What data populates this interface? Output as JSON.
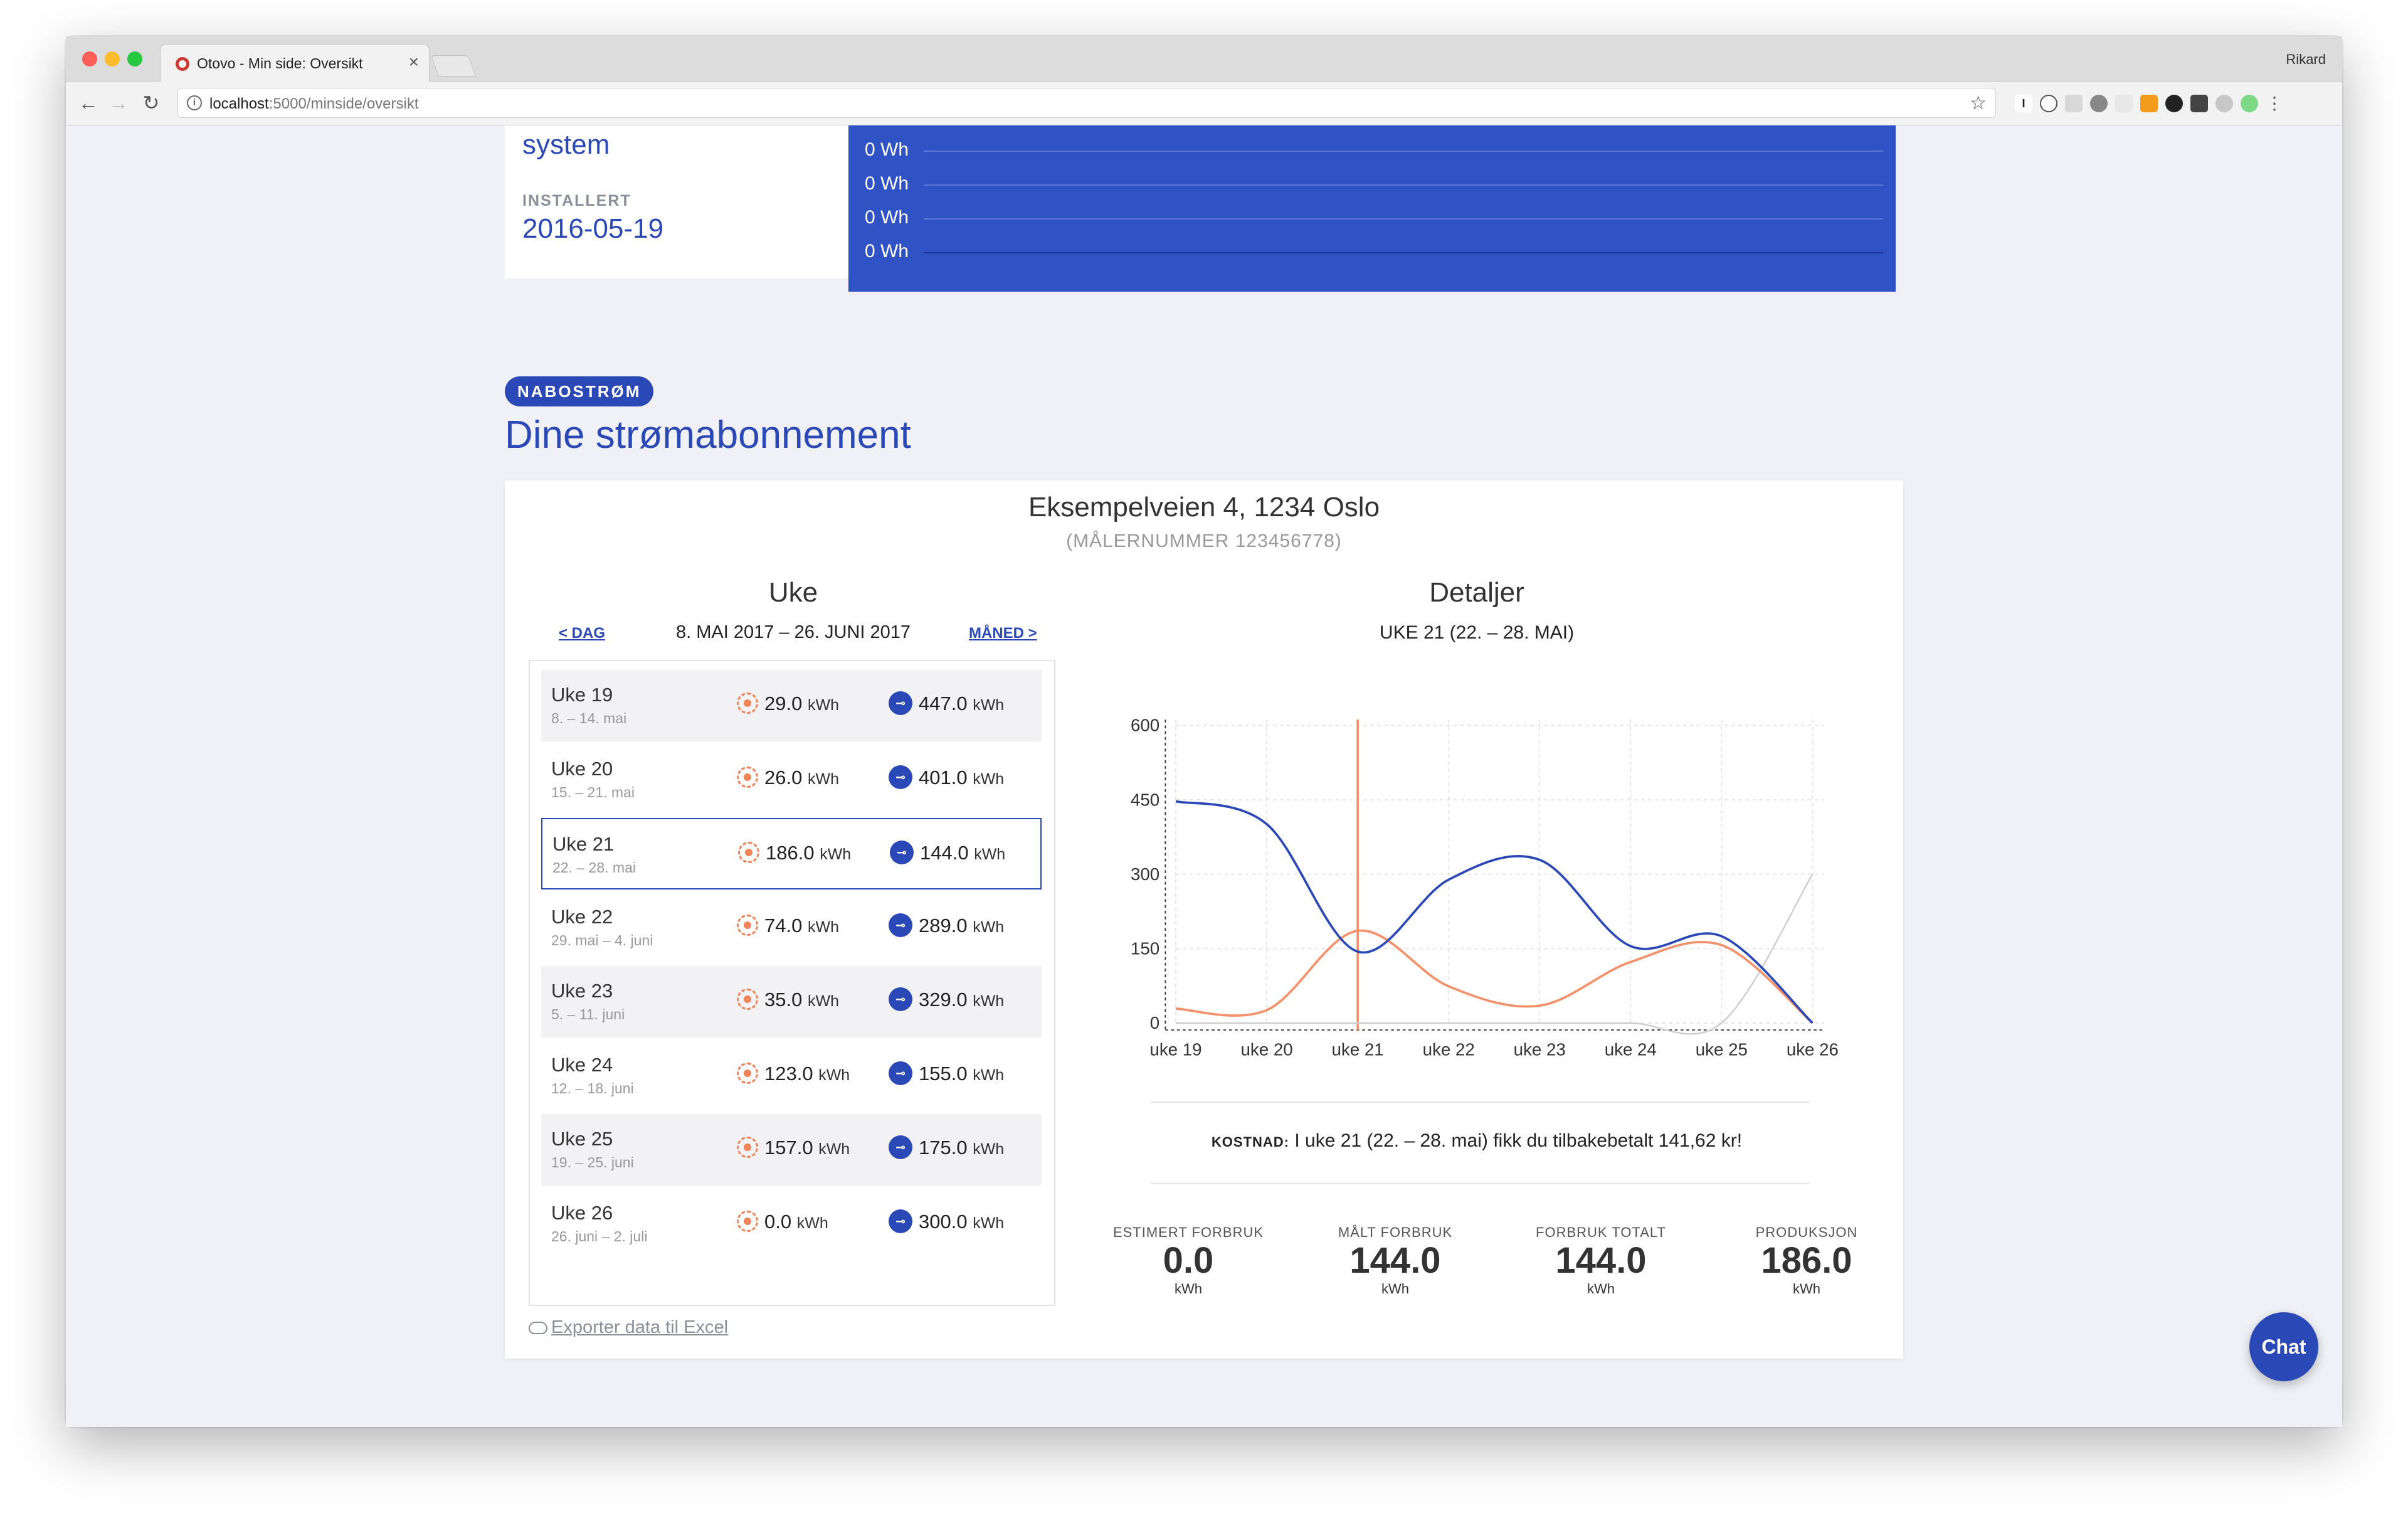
{
  "browser": {
    "tab_title": "Otovo - Min side: Oversikt",
    "tab_close": "×",
    "user": "Rikard",
    "url_host": "localhost",
    "url_path": ":5000/minside/oversikt",
    "back": "←",
    "forward": "→",
    "reload": "↻",
    "bookmark": "☆",
    "info": "i"
  },
  "system_card": {
    "system_word": "system",
    "installed_label": "INSTALLERT",
    "installed_date": "2016-05-19"
  },
  "production_chart": {
    "labels": [
      "0 Wh",
      "0 Wh",
      "0 Wh",
      "0 Wh"
    ]
  },
  "section": {
    "badge": "NABOSTRØM",
    "title": "Dine strømabonnement"
  },
  "subscription": {
    "address": "Eksempelveien 4, 1234 Oslo",
    "meter": "(MÅLERNUMMER 123456778)",
    "week_heading": "Uke",
    "prev_link": "< DAG",
    "range": "8. MAI 2017 – 26. JUNI 2017",
    "next_link": "MÅNED >",
    "unit": "kWh",
    "weeks": [
      {
        "name": "Uke 19",
        "dates": "8. – 14. mai",
        "production": "29.0",
        "consumption": "447.0"
      },
      {
        "name": "Uke 20",
        "dates": "15. – 21. mai",
        "production": "26.0",
        "consumption": "401.0"
      },
      {
        "name": "Uke 21",
        "dates": "22. – 28. mai",
        "production": "186.0",
        "consumption": "144.0"
      },
      {
        "name": "Uke 22",
        "dates": "29. mai – 4. juni",
        "production": "74.0",
        "consumption": "289.0"
      },
      {
        "name": "Uke 23",
        "dates": "5. – 11. juni",
        "production": "35.0",
        "consumption": "329.0"
      },
      {
        "name": "Uke 24",
        "dates": "12. – 18. juni",
        "production": "123.0",
        "consumption": "155.0"
      },
      {
        "name": "Uke 25",
        "dates": "19. – 25. juni",
        "production": "157.0",
        "consumption": "175.0"
      },
      {
        "name": "Uke 26",
        "dates": "26. juni – 2. juli",
        "production": "0.0",
        "consumption": "300.0"
      }
    ],
    "export_link": "Exporter data til Excel"
  },
  "details": {
    "heading": "Detaljer",
    "subheading": "UKE 21 (22. – 28. MAI)",
    "cost_label": "KOSTNAD:",
    "cost_text": "I uke 21 (22. – 28. mai) fikk du tilbakebetalt 141,62 kr!",
    "stats": [
      {
        "label": "ESTIMERT FORBRUK",
        "value": "0.0",
        "unit": "kWh"
      },
      {
        "label": "MÅLT FORBRUK",
        "value": "144.0",
        "unit": "kWh"
      },
      {
        "label": "FORBRUK TOTALT",
        "value": "144.0",
        "unit": "kWh"
      },
      {
        "label": "PRODUKSJON",
        "value": "186.0",
        "unit": "kWh"
      }
    ]
  },
  "chart_data": {
    "type": "line",
    "categories": [
      "uke 19",
      "uke 20",
      "uke 21",
      "uke 22",
      "uke 23",
      "uke 24",
      "uke 25",
      "uke 26"
    ],
    "ylim": [
      0,
      600
    ],
    "yticks": [
      0,
      150,
      300,
      450,
      600
    ],
    "series": [
      {
        "color": "#2a48b6",
        "values": [
          447,
          401,
          144,
          289,
          329,
          155,
          175,
          0
        ]
      },
      {
        "color": "#f4916a",
        "values": [
          29,
          26,
          186,
          74,
          35,
          123,
          157,
          0
        ]
      },
      {
        "color": "#cccccc",
        "values": [
          0,
          0,
          0,
          0,
          0,
          0,
          0,
          300
        ]
      }
    ],
    "highlight_category": "uke 21",
    "grid": true
  },
  "chat": {
    "label": "Chat"
  }
}
